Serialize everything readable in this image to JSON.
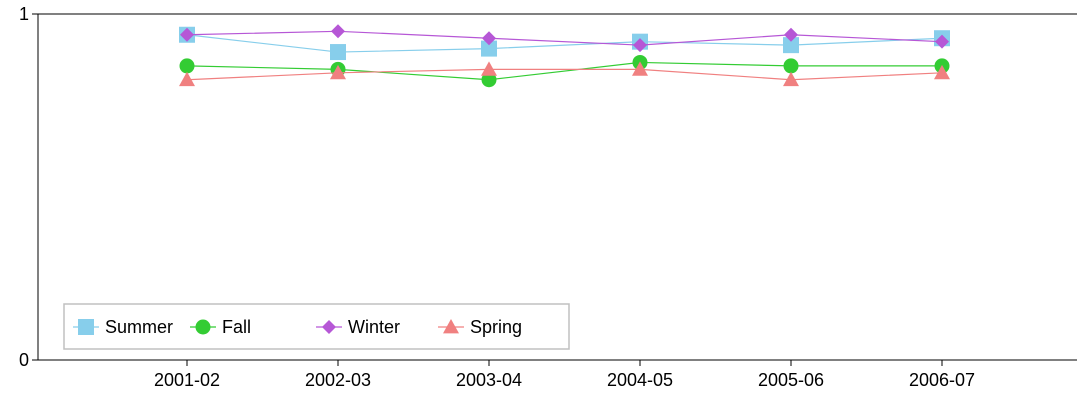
{
  "chart_data": {
    "type": "line",
    "title": "",
    "xlabel": "",
    "ylabel": "",
    "categories": [
      "2001-02",
      "2002-03",
      "2003-04",
      "2004-05",
      "2005-06",
      "2006-07"
    ],
    "ylim": [
      0,
      1
    ],
    "yticks": [
      "0",
      "1"
    ],
    "grid": false,
    "legend_position": "bottom-left",
    "series": [
      {
        "name": "Summer",
        "color": "#87ceeb",
        "marker": "square",
        "values": [
          0.94,
          0.89,
          0.9,
          0.92,
          0.91,
          0.93
        ]
      },
      {
        "name": "Fall",
        "color": "#33cc33",
        "marker": "circle",
        "values": [
          0.85,
          0.84,
          0.81,
          0.86,
          0.85,
          0.85
        ]
      },
      {
        "name": "Winter",
        "color": "#b657d6",
        "marker": "diamond",
        "values": [
          0.94,
          0.95,
          0.93,
          0.91,
          0.94,
          0.92
        ]
      },
      {
        "name": "Spring",
        "color": "#f08080",
        "marker": "triangle",
        "values": [
          0.81,
          0.83,
          0.84,
          0.84,
          0.81,
          0.83
        ]
      }
    ]
  }
}
